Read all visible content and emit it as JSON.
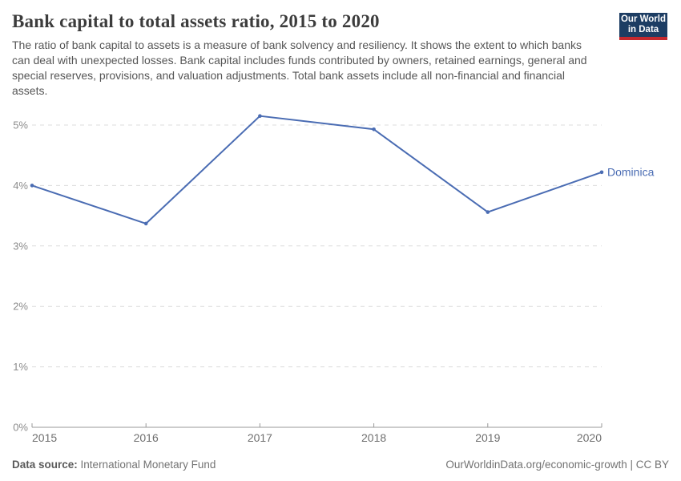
{
  "header": {
    "title": "Bank capital to total assets ratio, 2015 to 2020",
    "subtitle": "The ratio of bank capital to assets is a measure of bank solvency and resiliency. It shows the extent to which banks can deal with unexpected losses. Bank capital includes funds contributed by owners, retained earnings, general and special reserves, provisions, and valuation adjustments. Total bank assets include all non-financial and financial assets.",
    "logo": {
      "line1": "Our World",
      "line2": "in Data",
      "bg_color": "#1d3d63",
      "stripe_color": "#c5292e"
    }
  },
  "chart_data": {
    "type": "line",
    "title": "Bank capital to total assets ratio, 2015 to 2020",
    "x": [
      "2015",
      "2016",
      "2017",
      "2018",
      "2019",
      "2020"
    ],
    "series": [
      {
        "name": "Dominica",
        "values": [
          4.0,
          3.37,
          5.15,
          4.93,
          3.56,
          4.22
        ],
        "color": "#4a6cb3"
      }
    ],
    "xlabel": "",
    "ylabel": "",
    "ylim": [
      0,
      5.2
    ],
    "y_ticks": [
      {
        "value": 0,
        "label": "0%"
      },
      {
        "value": 1,
        "label": "1%"
      },
      {
        "value": 2,
        "label": "2%"
      },
      {
        "value": 3,
        "label": "3%"
      },
      {
        "value": 4,
        "label": "4%"
      },
      {
        "value": 5,
        "label": "5%"
      }
    ],
    "grid": "horizontal-dashed",
    "legend_position": "end-of-line-label",
    "grid_color": "#dcdcdc",
    "axis_color": "#999999"
  },
  "footer": {
    "data_source_label": "Data source:",
    "data_source_value": "International Monetary Fund",
    "credit": "OurWorldinData.org/economic-growth | CC BY"
  }
}
